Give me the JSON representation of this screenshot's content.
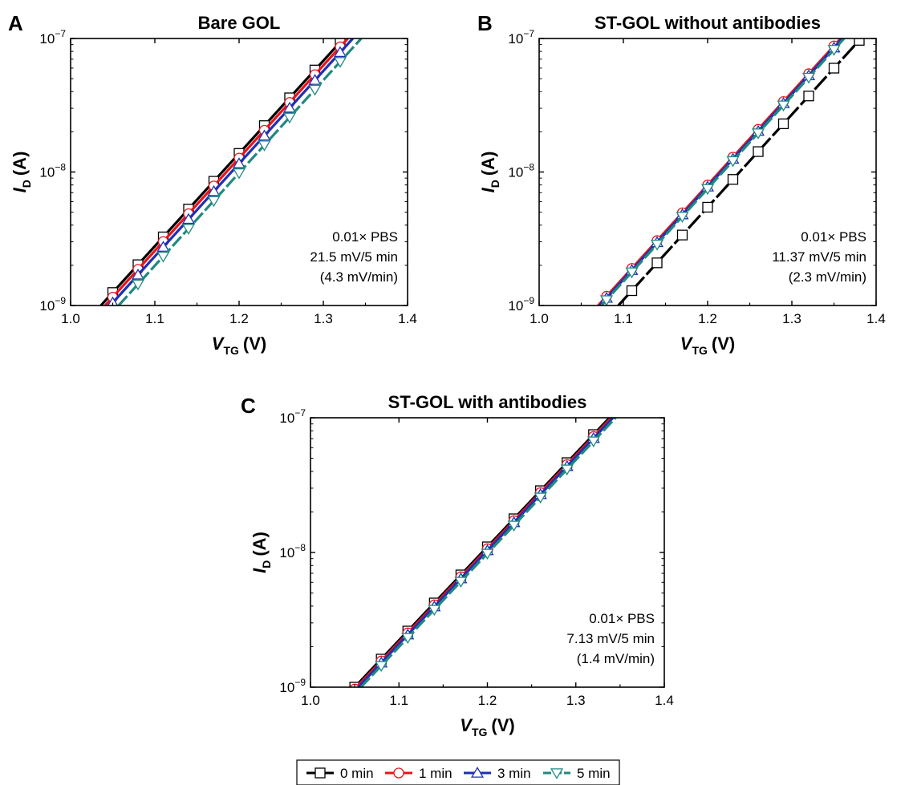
{
  "legend": [
    {
      "label": "0 min",
      "color": "#000000",
      "marker": "square"
    },
    {
      "label": "1 min",
      "color": "#e8141c",
      "marker": "circle"
    },
    {
      "label": "3 min",
      "color": "#1f2fb5",
      "marker": "triangle-up"
    },
    {
      "label": "5 min",
      "color": "#1f8a80",
      "marker": "triangle-down"
    }
  ],
  "chart_data": [
    {
      "panel": "A",
      "title": "Bare GOL",
      "type": "line",
      "xlabel": {
        "main": "V",
        "sub": "TG",
        "unit": "(V)"
      },
      "ylabel": {
        "main": "I",
        "sub": "D",
        "unit": "(A)"
      },
      "xlim": [
        1.0,
        1.4
      ],
      "ylim": [
        1e-09,
        1e-07
      ],
      "yscale": "log",
      "xticks": [
        "1.0",
        "1.1",
        "1.2",
        "1.3",
        "1.4"
      ],
      "yticks": [
        {
          "base": "10",
          "exp": "−9"
        },
        {
          "base": "10",
          "exp": "−8"
        },
        {
          "base": "10",
          "exp": "−7"
        }
      ],
      "grid": false,
      "annotation": [
        "0.01× PBS",
        "21.5 mV/5 min",
        "(4.3 mV/min)"
      ],
      "series": [
        {
          "name": "0 min",
          "x0": 1.036,
          "x1": 1.324,
          "markers": [
            1.05,
            1.08,
            1.11,
            1.14,
            1.17,
            1.2,
            1.23,
            1.26,
            1.29,
            1.32
          ]
        },
        {
          "name": "1 min",
          "x0": 1.041,
          "x1": 1.329,
          "markers": [
            1.05,
            1.08,
            1.11,
            1.14,
            1.17,
            1.2,
            1.23,
            1.26,
            1.29,
            1.32
          ]
        },
        {
          "name": "3 min",
          "x0": 1.047,
          "x1": 1.335,
          "markers": [
            1.05,
            1.08,
            1.11,
            1.14,
            1.17,
            1.2,
            1.23,
            1.26,
            1.29,
            1.32
          ]
        },
        {
          "name": "5 min",
          "x0": 1.057,
          "x1": 1.345,
          "markers": [
            1.08,
            1.11,
            1.14,
            1.17,
            1.2,
            1.23,
            1.26,
            1.29,
            1.32
          ]
        }
      ]
    },
    {
      "panel": "B",
      "title": "ST-GOL without antibodies",
      "type": "line",
      "xlabel": {
        "main": "V",
        "sub": "TG",
        "unit": "(V)"
      },
      "ylabel": {
        "main": "I",
        "sub": "D",
        "unit": "(A)"
      },
      "xlim": [
        1.0,
        1.4
      ],
      "ylim": [
        1e-09,
        1e-07
      ],
      "yscale": "log",
      "xticks": [
        "1.0",
        "1.1",
        "1.2",
        "1.3",
        "1.4"
      ],
      "yticks": [
        {
          "base": "10",
          "exp": "−9"
        },
        {
          "base": "10",
          "exp": "−8"
        },
        {
          "base": "10",
          "exp": "−7"
        }
      ],
      "grid": false,
      "annotation": [
        "0.01× PBS",
        "11.37 mV/5 min",
        "(2.3 mV/min)"
      ],
      "series": [
        {
          "name": "0 min",
          "x0": 1.094,
          "x1": 1.382,
          "markers": [
            1.11,
            1.14,
            1.17,
            1.2,
            1.23,
            1.26,
            1.29,
            1.32,
            1.35,
            1.38
          ]
        },
        {
          "name": "1 min",
          "x0": 1.07,
          "x1": 1.358,
          "markers": [
            1.08,
            1.11,
            1.14,
            1.17,
            1.2,
            1.23,
            1.26,
            1.29,
            1.32,
            1.35
          ]
        },
        {
          "name": "3 min",
          "x0": 1.072,
          "x1": 1.36,
          "markers": [
            1.08,
            1.11,
            1.14,
            1.17,
            1.2,
            1.23,
            1.26,
            1.29,
            1.32,
            1.35
          ]
        },
        {
          "name": "5 min",
          "x0": 1.074,
          "x1": 1.362,
          "markers": [
            1.08,
            1.11,
            1.14,
            1.17,
            1.2,
            1.23,
            1.26,
            1.29,
            1.32,
            1.35
          ]
        }
      ]
    },
    {
      "panel": "C",
      "title": "ST-GOL with antibodies",
      "type": "line",
      "xlabel": {
        "main": "V",
        "sub": "TG",
        "unit": "(V)"
      },
      "ylabel": {
        "main": "I",
        "sub": "D",
        "unit": "(A)"
      },
      "xlim": [
        1.0,
        1.4
      ],
      "ylim": [
        1e-09,
        1e-07
      ],
      "yscale": "log",
      "xticks": [
        "1.0",
        "1.1",
        "1.2",
        "1.3",
        "1.4"
      ],
      "yticks": [
        {
          "base": "10",
          "exp": "−9"
        },
        {
          "base": "10",
          "exp": "−8"
        },
        {
          "base": "10",
          "exp": "−7"
        }
      ],
      "grid": false,
      "annotation": [
        "0.01× PBS",
        "7.13 mV/5 min",
        "(1.4 mV/min)"
      ],
      "series": [
        {
          "name": "0 min",
          "x0": 1.05,
          "x1": 1.338,
          "markers": [
            1.05,
            1.08,
            1.11,
            1.14,
            1.17,
            1.2,
            1.23,
            1.26,
            1.29,
            1.32
          ]
        },
        {
          "name": "1 min",
          "x0": 1.052,
          "x1": 1.34,
          "markers": [
            1.05,
            1.08,
            1.11,
            1.14,
            1.17,
            1.2,
            1.23,
            1.26,
            1.29,
            1.32
          ]
        },
        {
          "name": "3 min",
          "x0": 1.054,
          "x1": 1.342,
          "markers": [
            1.08,
            1.11,
            1.14,
            1.17,
            1.2,
            1.23,
            1.26,
            1.29,
            1.32
          ]
        },
        {
          "name": "5 min",
          "x0": 1.057,
          "x1": 1.345,
          "markers": [
            1.08,
            1.11,
            1.14,
            1.17,
            1.2,
            1.23,
            1.26,
            1.29,
            1.32
          ]
        }
      ]
    }
  ]
}
